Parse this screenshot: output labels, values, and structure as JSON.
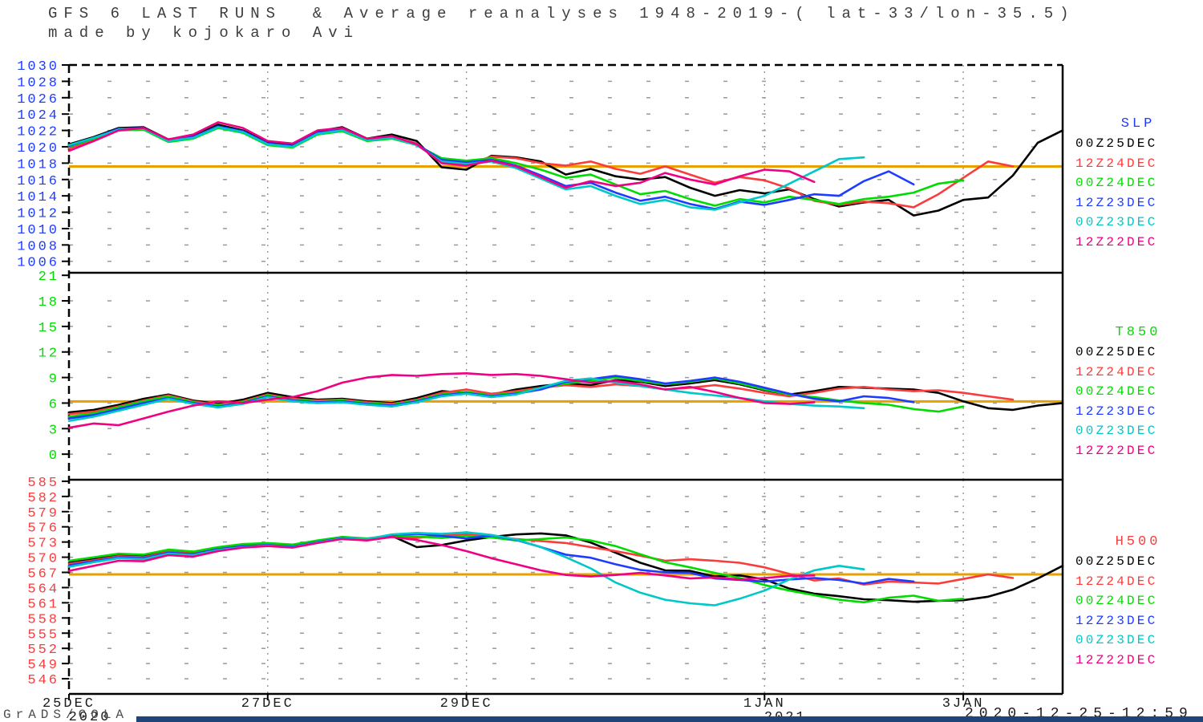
{
  "header": {
    "line1": "GFS 6 LAST RUNS  & Average reanalyses 1948-2019-( lat-33/lon-35.5)",
    "line2": "made by kojokaro Avi"
  },
  "footer": {
    "credit": "GrADS/COLA",
    "timestamp": "2020-12-25-12:59"
  },
  "colors": {
    "background": "#ffffff",
    "frame": "#000000",
    "grid": "#9a9a9a",
    "average_line": "#e6a000",
    "bottom_bar": "#1f4477",
    "black_run": "#000000",
    "red_run": "#fa3c3c",
    "green_run": "#00dc00",
    "blue_run": "#1e3cff",
    "cyan_run": "#00c8c8",
    "magenta_run": "#f00082"
  },
  "x_axis": {
    "days_total": 10,
    "ticks": [
      {
        "label": "25DEC",
        "year": "2020",
        "day": 0
      },
      {
        "label": "27DEC",
        "day": 2
      },
      {
        "label": "29DEC",
        "day": 4
      },
      {
        "label": "1JAN",
        "year": "2021",
        "day": 7
      },
      {
        "label": "3JAN",
        "day": 9
      }
    ]
  },
  "chart_data": [
    {
      "type": "line",
      "title": "SLP",
      "axis_color": "#1e3cff",
      "y_ticks": [
        1030,
        1028,
        1026,
        1024,
        1022,
        1020,
        1018,
        1016,
        1014,
        1012,
        1010,
        1008,
        1006
      ],
      "ylim": [
        1004.6,
        1030
      ],
      "average_line": {
        "value": 1017.6
      },
      "series": [
        {
          "name": "00Z25DEC",
          "color": "#000000",
          "start_day": 0,
          "step_days": 0.25,
          "values": [
            1020.3,
            1021.2,
            1022.3,
            1022.4,
            1020.9,
            1021.3,
            1022.7,
            1022.0,
            1020.5,
            1020.3,
            1021.9,
            1022.4,
            1021.0,
            1021.5,
            1020.7,
            1017.5,
            1017.2,
            1018.9,
            1018.7,
            1018.2,
            1016.6,
            1017.3,
            1016.4,
            1016.0,
            1016.3,
            1015.0,
            1014.0,
            1014.7,
            1014.3,
            1014.8,
            1013.6,
            1012.7,
            1013.2,
            1013.5,
            1011.6,
            1012.2,
            1013.5,
            1013.8,
            1016.5,
            1020.5,
            1022.0
          ]
        },
        {
          "name": "12Z24DEC",
          "color": "#fa3c3c",
          "start_day": 0,
          "step_days": 0.25,
          "values": [
            1019.8,
            1020.9,
            1022.2,
            1022.2,
            1020.7,
            1021.1,
            1022.4,
            1021.8,
            1020.3,
            1020.0,
            1021.6,
            1022.0,
            1020.8,
            1021.2,
            1020.4,
            1018.1,
            1017.8,
            1018.8,
            1018.6,
            1018.0,
            1017.7,
            1018.2,
            1017.3,
            1016.7,
            1017.6,
            1016.6,
            1015.6,
            1016.3,
            1015.9,
            1014.9,
            1013.4,
            1012.9,
            1013.3,
            1013.1,
            1012.6,
            1014.2,
            1016.2,
            1018.2,
            1017.6
          ]
        },
        {
          "name": "00Z24DEC",
          "color": "#00dc00",
          "start_day": 0,
          "step_days": 0.25,
          "values": [
            1020.0,
            1021.0,
            1022.0,
            1022.1,
            1020.6,
            1021.0,
            1022.3,
            1021.7,
            1020.2,
            1019.9,
            1021.5,
            1021.9,
            1020.7,
            1021.0,
            1020.2,
            1018.6,
            1018.3,
            1018.6,
            1018.0,
            1017.2,
            1016.2,
            1016.6,
            1015.4,
            1014.2,
            1014.6,
            1013.6,
            1012.8,
            1013.6,
            1013.2,
            1013.9,
            1013.5,
            1013.0,
            1013.6,
            1013.9,
            1014.4,
            1015.5,
            1015.9
          ]
        },
        {
          "name": "12Z23DEC",
          "color": "#1e3cff",
          "start_day": 0,
          "step_days": 0.25,
          "values": [
            1020.1,
            1021.1,
            1022.2,
            1022.3,
            1020.8,
            1021.2,
            1022.5,
            1021.9,
            1020.4,
            1020.1,
            1021.7,
            1022.1,
            1020.9,
            1021.2,
            1020.3,
            1018.4,
            1018.1,
            1018.4,
            1017.7,
            1016.5,
            1015.2,
            1015.6,
            1014.4,
            1013.4,
            1013.9,
            1013.0,
            1012.4,
            1013.3,
            1012.9,
            1013.5,
            1014.2,
            1014.0,
            1015.8,
            1017.0,
            1015.4
          ]
        },
        {
          "name": "00Z23DEC",
          "color": "#00c8c8",
          "start_day": 0,
          "step_days": 0.25,
          "values": [
            1020.2,
            1021.1,
            1022.1,
            1022.2,
            1020.7,
            1021.1,
            1022.4,
            1021.8,
            1020.3,
            1020.0,
            1021.6,
            1022.0,
            1020.8,
            1021.1,
            1020.2,
            1018.2,
            1017.9,
            1018.2,
            1017.4,
            1016.1,
            1014.8,
            1015.2,
            1014.0,
            1013.0,
            1013.5,
            1012.6,
            1012.3,
            1013.2,
            1014.0,
            1015.5,
            1017.0,
            1018.5,
            1018.7
          ]
        },
        {
          "name": "12Z22DEC",
          "color": "#f00082",
          "start_day": 0,
          "step_days": 0.25,
          "values": [
            1019.5,
            1020.7,
            1022.0,
            1022.3,
            1020.9,
            1021.5,
            1023.0,
            1022.3,
            1020.7,
            1020.4,
            1022.0,
            1022.3,
            1021.0,
            1021.3,
            1020.3,
            1018.0,
            1017.7,
            1018.3,
            1017.6,
            1016.3,
            1015.0,
            1015.8,
            1015.2,
            1015.6,
            1016.8,
            1016.0,
            1015.4,
            1016.4,
            1017.2,
            1017.0,
            1015.7
          ]
        }
      ]
    },
    {
      "type": "line",
      "title": "T850",
      "axis_color": "#00dc00",
      "y_ticks": [
        21,
        18,
        15,
        12,
        9,
        6,
        3,
        0
      ],
      "ylim": [
        -3.0,
        21.3
      ],
      "average_line": {
        "value": 6.2
      },
      "series": [
        {
          "name": "00Z25DEC",
          "color": "#000000",
          "start_day": 0,
          "step_days": 0.25,
          "values": [
            4.9,
            5.2,
            5.8,
            6.5,
            7.0,
            6.3,
            5.9,
            6.4,
            7.2,
            6.7,
            6.4,
            6.5,
            6.2,
            6.0,
            6.6,
            7.4,
            7.2,
            7.0,
            7.6,
            8.0,
            8.3,
            8.1,
            8.7,
            8.5,
            8.0,
            8.3,
            8.7,
            8.2,
            7.5,
            7.0,
            7.4,
            7.9,
            7.8,
            7.7,
            7.6,
            7.2,
            6.2,
            5.4,
            5.2,
            5.7,
            6.0
          ]
        },
        {
          "name": "12Z24DEC",
          "color": "#fa3c3c",
          "start_day": 0,
          "step_days": 0.25,
          "values": [
            4.7,
            5.0,
            5.6,
            6.3,
            6.9,
            6.2,
            5.8,
            6.2,
            7.0,
            6.5,
            6.3,
            6.4,
            6.1,
            5.9,
            6.4,
            7.2,
            7.6,
            7.1,
            7.4,
            7.8,
            8.1,
            7.9,
            8.2,
            8.0,
            7.6,
            7.8,
            8.1,
            7.7,
            7.2,
            6.8,
            7.2,
            7.7,
            7.9,
            7.6,
            7.4,
            7.5,
            7.2,
            6.8,
            6.4
          ]
        },
        {
          "name": "00Z24DEC",
          "color": "#00dc00",
          "start_day": 0,
          "step_days": 0.25,
          "values": [
            4.4,
            4.8,
            5.5,
            6.2,
            6.8,
            6.1,
            5.7,
            6.1,
            6.9,
            6.4,
            6.2,
            6.3,
            6.0,
            5.8,
            6.3,
            7.0,
            7.3,
            6.9,
            7.2,
            7.7,
            8.3,
            8.6,
            9.0,
            8.6,
            8.2,
            8.5,
            8.9,
            8.3,
            7.6,
            7.0,
            6.7,
            6.3,
            6.0,
            5.8,
            5.3,
            5.0,
            5.6
          ]
        },
        {
          "name": "12Z23DEC",
          "color": "#1e3cff",
          "start_day": 0,
          "step_days": 0.25,
          "values": [
            4.2,
            4.6,
            5.3,
            6.0,
            6.6,
            6.0,
            5.6,
            6.0,
            6.8,
            6.3,
            6.1,
            6.2,
            5.9,
            5.7,
            6.2,
            6.9,
            7.2,
            6.8,
            7.1,
            7.6,
            8.5,
            8.8,
            9.2,
            8.8,
            8.3,
            8.6,
            9.0,
            8.5,
            7.8,
            7.1,
            6.5,
            6.2,
            6.8,
            6.6,
            6.1
          ]
        },
        {
          "name": "00Z23DEC",
          "color": "#00c8c8",
          "start_day": 0,
          "step_days": 0.25,
          "values": [
            3.9,
            4.4,
            5.1,
            5.8,
            6.5,
            5.9,
            5.5,
            5.9,
            6.7,
            6.2,
            6.0,
            6.1,
            5.8,
            5.6,
            6.1,
            6.8,
            7.1,
            6.7,
            7.0,
            7.8,
            8.6,
            8.9,
            8.4,
            8.0,
            7.6,
            7.2,
            6.9,
            6.6,
            6.2,
            5.9,
            5.7,
            5.6,
            5.4
          ]
        },
        {
          "name": "12Z22DEC",
          "color": "#f00082",
          "start_day": 0,
          "step_days": 0.25,
          "values": [
            3.1,
            3.6,
            3.4,
            4.2,
            5.0,
            5.7,
            6.2,
            6.0,
            6.4,
            6.7,
            7.4,
            8.4,
            9.0,
            9.3,
            9.2,
            9.4,
            9.5,
            9.3,
            9.4,
            9.2,
            8.8,
            8.4,
            8.6,
            8.2,
            7.6,
            7.9,
            7.3,
            6.6,
            6.0,
            5.9,
            6.1
          ]
        }
      ]
    },
    {
      "type": "line",
      "title": "H500",
      "axis_color": "#fa3c3c",
      "y_ticks": [
        585,
        582,
        579,
        576,
        573,
        570,
        567,
        564,
        561,
        558,
        555,
        552,
        549,
        546
      ],
      "ylim": [
        543.0,
        585.3
      ],
      "average_line": {
        "value": 566.6
      },
      "series": [
        {
          "name": "00Z25DEC",
          "color": "#000000",
          "start_day": 0,
          "step_days": 0.25,
          "values": [
            568.9,
            569.6,
            570.4,
            570.2,
            571.3,
            570.9,
            571.9,
            572.5,
            572.7,
            572.4,
            573.2,
            573.9,
            573.6,
            574.2,
            572.0,
            572.4,
            573.3,
            574.0,
            574.5,
            574.7,
            574.3,
            572.9,
            570.9,
            568.9,
            567.4,
            567.3,
            566.2,
            566.4,
            565.6,
            563.8,
            562.8,
            562.3,
            561.7,
            561.5,
            561.2,
            561.4,
            561.5,
            562.2,
            563.6,
            565.8,
            568.3
          ]
        },
        {
          "name": "12Z24DEC",
          "color": "#fa3c3c",
          "start_day": 0,
          "step_days": 0.25,
          "values": [
            568.7,
            569.4,
            570.2,
            570.0,
            571.1,
            570.7,
            571.7,
            572.3,
            572.5,
            572.2,
            573.0,
            573.7,
            573.4,
            574.0,
            573.8,
            574.3,
            574.5,
            574.1,
            573.6,
            573.2,
            572.8,
            572.0,
            571.2,
            570.3,
            569.3,
            569.6,
            569.3,
            568.9,
            568.0,
            566.7,
            565.4,
            565.8,
            564.6,
            565.2,
            565.0,
            564.8,
            565.7,
            566.6,
            565.9
          ]
        },
        {
          "name": "00Z24DEC",
          "color": "#00dc00",
          "start_day": 0,
          "step_days": 0.25,
          "values": [
            569.3,
            570.0,
            570.7,
            570.5,
            571.5,
            571.1,
            572.0,
            572.6,
            572.8,
            572.5,
            573.3,
            574.0,
            573.7,
            574.3,
            574.1,
            573.8,
            574.2,
            573.9,
            573.3,
            573.6,
            573.9,
            573.3,
            572.2,
            570.6,
            569.0,
            568.0,
            566.9,
            565.9,
            564.5,
            563.4,
            562.5,
            561.6,
            561.1,
            562.0,
            562.4,
            561.4,
            561.8
          ]
        },
        {
          "name": "12Z23DEC",
          "color": "#1e3cff",
          "start_day": 0,
          "step_days": 0.25,
          "values": [
            568.4,
            569.2,
            570.0,
            569.8,
            570.9,
            570.6,
            571.6,
            572.2,
            572.4,
            572.1,
            573.0,
            573.8,
            573.5,
            574.4,
            574.6,
            574.2,
            573.7,
            574.3,
            573.4,
            572.0,
            570.5,
            569.9,
            568.6,
            567.5,
            567.0,
            566.9,
            565.8,
            565.5,
            565.2,
            565.6,
            565.9,
            565.5,
            564.8,
            565.7,
            565.2
          ]
        },
        {
          "name": "00Z23DEC",
          "color": "#00c8c8",
          "start_day": 0,
          "step_days": 0.25,
          "values": [
            568.1,
            569.0,
            569.8,
            569.6,
            570.7,
            570.4,
            571.4,
            572.0,
            572.3,
            572.0,
            572.9,
            573.7,
            573.6,
            574.5,
            574.8,
            574.6,
            574.9,
            574.4,
            573.5,
            572.0,
            570.0,
            567.8,
            565.0,
            563.0,
            561.6,
            560.9,
            560.5,
            561.8,
            563.4,
            565.6,
            567.4,
            568.3,
            567.6
          ]
        },
        {
          "name": "12Z22DEC",
          "color": "#f00082",
          "start_day": 0,
          "step_days": 0.25,
          "values": [
            567.3,
            568.3,
            569.3,
            569.2,
            570.4,
            570.1,
            571.2,
            571.9,
            572.2,
            571.9,
            572.8,
            573.6,
            573.3,
            574.0,
            573.4,
            572.4,
            571.2,
            569.8,
            568.6,
            567.4,
            566.5,
            566.2,
            566.5,
            566.9,
            566.4,
            565.8,
            566.0,
            565.6,
            565.9,
            566.3,
            566.4
          ]
        }
      ]
    }
  ]
}
